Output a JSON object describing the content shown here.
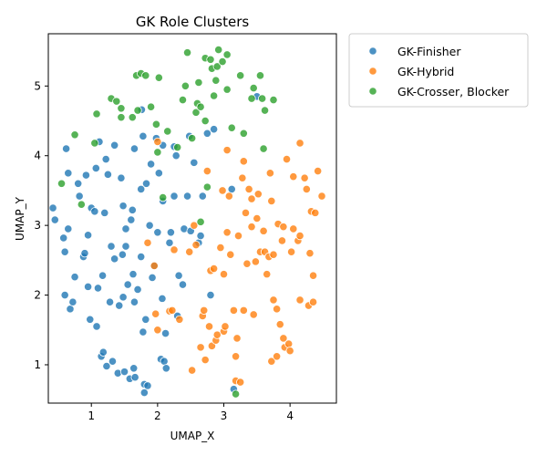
{
  "chart_data": {
    "type": "scatter",
    "title": "GK Role Clusters",
    "xlabel": "UMAP_X",
    "ylabel": "UMAP_Y",
    "xlim": [
      0.35,
      4.7
    ],
    "ylim": [
      0.45,
      5.75
    ],
    "xticks": [
      1,
      2,
      3,
      4
    ],
    "yticks": [
      1,
      2,
      3,
      4,
      5
    ],
    "grid": false,
    "legend_position": "outside-top-right",
    "series": [
      {
        "name": "GK-Finisher",
        "color": "#1f77b4",
        "points": [
          [
            0.42,
            3.25
          ],
          [
            0.45,
            3.08
          ],
          [
            0.58,
            2.82
          ],
          [
            0.6,
            2.62
          ],
          [
            0.62,
            4.1
          ],
          [
            0.65,
            3.75
          ],
          [
            0.65,
            2.95
          ],
          [
            0.6,
            2.0
          ],
          [
            0.68,
            1.8
          ],
          [
            0.72,
            1.9
          ],
          [
            0.75,
            2.26
          ],
          [
            0.8,
            3.6
          ],
          [
            0.82,
            3.42
          ],
          [
            0.88,
            2.55
          ],
          [
            0.9,
            2.6
          ],
          [
            0.92,
            3.72
          ],
          [
            0.95,
            2.86
          ],
          [
            0.95,
            2.12
          ],
          [
            0.98,
            1.65
          ],
          [
            1.0,
            3.25
          ],
          [
            1.05,
            3.2
          ],
          [
            1.07,
            3.82
          ],
          [
            1.08,
            1.55
          ],
          [
            1.1,
            2.1
          ],
          [
            1.12,
            4.2
          ],
          [
            1.15,
            1.12
          ],
          [
            1.17,
            2.28
          ],
          [
            1.18,
            1.18
          ],
          [
            1.2,
            3.18
          ],
          [
            1.22,
            3.95
          ],
          [
            1.23,
            0.98
          ],
          [
            1.25,
            3.73
          ],
          [
            1.28,
            1.9
          ],
          [
            1.3,
            2.7
          ],
          [
            1.32,
            1.05
          ],
          [
            1.35,
            2.52
          ],
          [
            1.35,
            4.15
          ],
          [
            1.4,
            0.88
          ],
          [
            1.42,
            1.85
          ],
          [
            1.45,
            3.68
          ],
          [
            1.47,
            2.58
          ],
          [
            1.48,
            3.28
          ],
          [
            1.48,
            1.97
          ],
          [
            1.5,
            0.9
          ],
          [
            1.52,
            2.95
          ],
          [
            1.52,
            2.7
          ],
          [
            1.55,
            2.15
          ],
          [
            1.58,
            0.8
          ],
          [
            1.6,
            3.08
          ],
          [
            1.62,
            3.22
          ],
          [
            1.63,
            2.3
          ],
          [
            1.64,
            0.95
          ],
          [
            1.65,
            1.9
          ],
          [
            1.65,
            4.1
          ],
          [
            1.66,
            0.82
          ],
          [
            1.7,
            2.08
          ],
          [
            1.75,
            2.55
          ],
          [
            1.75,
            3.52
          ],
          [
            1.76,
            4.66
          ],
          [
            1.78,
            1.47
          ],
          [
            1.78,
            4.28
          ],
          [
            1.8,
            0.72
          ],
          [
            1.8,
            0.6
          ],
          [
            1.82,
            1.65
          ],
          [
            1.83,
            3.6
          ],
          [
            1.85,
            0.7
          ],
          [
            1.88,
            3.0
          ],
          [
            1.9,
            3.88
          ],
          [
            1.92,
            2.25
          ],
          [
            1.95,
            2.42
          ],
          [
            1.98,
            4.25
          ],
          [
            2.0,
            2.9
          ],
          [
            2.02,
            3.75
          ],
          [
            2.05,
            1.08
          ],
          [
            2.07,
            1.95
          ],
          [
            2.08,
            4.15
          ],
          [
            2.08,
            3.35
          ],
          [
            2.1,
            1.05
          ],
          [
            2.12,
            1.45
          ],
          [
            2.13,
            0.95
          ],
          [
            2.18,
            2.75
          ],
          [
            2.2,
            2.9
          ],
          [
            2.25,
            4.13
          ],
          [
            2.25,
            3.42
          ],
          [
            2.28,
            4.0
          ],
          [
            2.3,
            1.7
          ],
          [
            2.32,
            2.28
          ],
          [
            2.38,
            2.15
          ],
          [
            2.4,
            2.95
          ],
          [
            2.45,
            3.42
          ],
          [
            2.48,
            4.28
          ],
          [
            2.5,
            2.92
          ],
          [
            2.55,
            3.9
          ],
          [
            2.62,
            2.75
          ],
          [
            2.65,
            2.85
          ],
          [
            2.68,
            3.42
          ],
          [
            2.75,
            4.32
          ],
          [
            2.8,
            2.0
          ],
          [
            2.85,
            4.38
          ],
          [
            3.12,
            3.52
          ],
          [
            3.15,
            0.65
          ],
          [
            3.5,
            4.85
          ]
        ]
      },
      {
        "name": "GK-Hybrid",
        "color": "#ff7f0e",
        "points": [
          [
            1.85,
            2.75
          ],
          [
            1.95,
            2.42
          ],
          [
            1.97,
            1.73
          ],
          [
            2.0,
            1.5
          ],
          [
            2.18,
            1.77
          ],
          [
            2.25,
            2.65
          ],
          [
            2.33,
            1.65
          ],
          [
            2.48,
            2.62
          ],
          [
            2.52,
            0.92
          ],
          [
            2.55,
            3.0
          ],
          [
            2.65,
            1.25
          ],
          [
            2.68,
            1.7
          ],
          [
            2.7,
            1.78
          ],
          [
            2.72,
            1.07
          ],
          [
            2.75,
            3.78
          ],
          [
            2.8,
            2.35
          ],
          [
            2.82,
            1.27
          ],
          [
            2.85,
            2.38
          ],
          [
            2.88,
            1.35
          ],
          [
            2.9,
            1.43
          ],
          [
            2.95,
            2.68
          ],
          [
            2.98,
            3.5
          ],
          [
            3.0,
            2.3
          ],
          [
            3.0,
            1.48
          ],
          [
            3.02,
            1.55
          ],
          [
            3.05,
            4.08
          ],
          [
            3.05,
            2.9
          ],
          [
            3.08,
            3.42
          ],
          [
            3.1,
            2.58
          ],
          [
            3.15,
            1.78
          ],
          [
            3.18,
            1.12
          ],
          [
            3.18,
            0.77
          ],
          [
            3.2,
            1.38
          ],
          [
            3.22,
            2.85
          ],
          [
            3.25,
            0.75
          ],
          [
            3.28,
            3.68
          ],
          [
            3.3,
            3.92
          ],
          [
            3.3,
            1.78
          ],
          [
            3.33,
            3.18
          ],
          [
            3.35,
            2.45
          ],
          [
            3.38,
            3.52
          ],
          [
            3.42,
            3.38
          ],
          [
            3.42,
            2.98
          ],
          [
            3.45,
            1.72
          ],
          [
            3.48,
            2.48
          ],
          [
            3.5,
            3.1
          ],
          [
            3.52,
            3.45
          ],
          [
            3.55,
            2.62
          ],
          [
            3.6,
            2.92
          ],
          [
            3.62,
            2.62
          ],
          [
            3.65,
            2.3
          ],
          [
            3.68,
            2.55
          ],
          [
            3.7,
            3.75
          ],
          [
            3.72,
            1.05
          ],
          [
            3.72,
            3.35
          ],
          [
            3.75,
            2.58
          ],
          [
            3.75,
            1.93
          ],
          [
            3.8,
            1.8
          ],
          [
            3.8,
            1.12
          ],
          [
            3.82,
            3.02
          ],
          [
            3.85,
            1.58
          ],
          [
            3.88,
            2.78
          ],
          [
            3.9,
            2.98
          ],
          [
            3.9,
            1.38
          ],
          [
            3.92,
            1.25
          ],
          [
            3.95,
            3.95
          ],
          [
            3.98,
            1.3
          ],
          [
            4.0,
            1.2
          ],
          [
            4.02,
            2.62
          ],
          [
            4.05,
            2.95
          ],
          [
            4.05,
            3.7
          ],
          [
            4.12,
            2.78
          ],
          [
            4.15,
            2.85
          ],
          [
            4.15,
            1.93
          ],
          [
            4.15,
            4.18
          ],
          [
            4.22,
            3.68
          ],
          [
            4.25,
            3.52
          ],
          [
            4.28,
            1.85
          ],
          [
            4.3,
            2.6
          ],
          [
            4.32,
            3.2
          ],
          [
            4.35,
            1.9
          ],
          [
            4.35,
            2.28
          ],
          [
            4.38,
            3.18
          ],
          [
            4.42,
            3.78
          ],
          [
            4.48,
            3.42
          ],
          [
            2.0,
            4.2
          ],
          [
            2.22,
            1.78
          ],
          [
            2.58,
            2.72
          ],
          [
            2.78,
            1.55
          ]
        ]
      },
      {
        "name": "GK-Crosser, Blocker",
        "color": "#2ca02c",
        "points": [
          [
            0.55,
            3.6
          ],
          [
            0.75,
            4.3
          ],
          [
            0.85,
            3.3
          ],
          [
            1.05,
            4.18
          ],
          [
            1.08,
            4.6
          ],
          [
            1.3,
            4.82
          ],
          [
            1.38,
            4.78
          ],
          [
            1.45,
            4.55
          ],
          [
            1.45,
            4.68
          ],
          [
            1.62,
            4.55
          ],
          [
            1.68,
            5.15
          ],
          [
            1.7,
            4.65
          ],
          [
            1.75,
            5.18
          ],
          [
            1.82,
            5.15
          ],
          [
            1.9,
            4.7
          ],
          [
            1.98,
            4.45
          ],
          [
            2.02,
            5.12
          ],
          [
            2.08,
            3.4
          ],
          [
            2.15,
            4.35
          ],
          [
            2.3,
            4.12
          ],
          [
            2.38,
            4.8
          ],
          [
            2.42,
            5.0
          ],
          [
            2.45,
            5.48
          ],
          [
            2.52,
            4.25
          ],
          [
            2.58,
            4.62
          ],
          [
            2.6,
            4.75
          ],
          [
            2.62,
            5.05
          ],
          [
            2.65,
            4.7
          ],
          [
            2.72,
            5.4
          ],
          [
            2.72,
            4.5
          ],
          [
            2.75,
            3.55
          ],
          [
            2.8,
            5.38
          ],
          [
            2.82,
            5.25
          ],
          [
            2.85,
            4.86
          ],
          [
            2.88,
            5.08
          ],
          [
            2.9,
            5.28
          ],
          [
            2.92,
            5.52
          ],
          [
            2.98,
            5.35
          ],
          [
            3.05,
            5.45
          ],
          [
            3.05,
            4.95
          ],
          [
            3.12,
            4.4
          ],
          [
            3.18,
            0.58
          ],
          [
            3.25,
            5.15
          ],
          [
            3.3,
            4.32
          ],
          [
            3.42,
            4.82
          ],
          [
            3.45,
            4.97
          ],
          [
            3.55,
            5.15
          ],
          [
            3.58,
            4.82
          ],
          [
            3.6,
            4.1
          ],
          [
            3.62,
            4.65
          ],
          [
            3.75,
            4.8
          ],
          [
            2.65,
            3.05
          ],
          [
            2.0,
            4.05
          ]
        ]
      }
    ]
  }
}
